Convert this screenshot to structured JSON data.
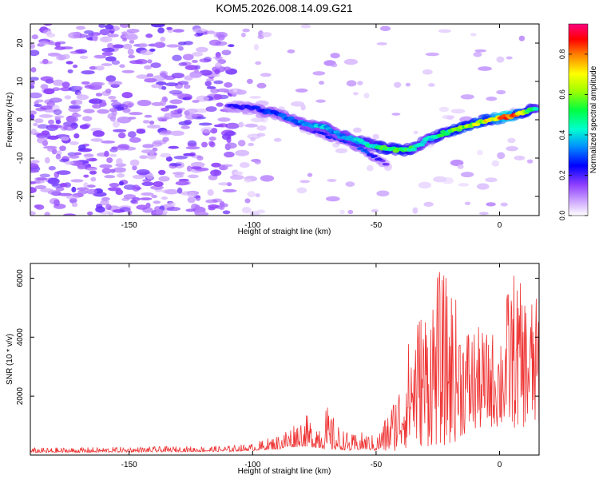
{
  "title": "KOM5.2026.008.14.09.G21",
  "chart_data": [
    {
      "type": "heatmap",
      "title": "KOM5.2026.008.14.09.G21",
      "xlabel": "Height of straight line (km)",
      "ylabel": "Frequency (Hz)",
      "xlim": [
        -190,
        16
      ],
      "ylim": [
        -25,
        25
      ],
      "xticks": [
        -150,
        -100,
        -50,
        0
      ],
      "yticks": [
        -20,
        -10,
        0,
        10,
        20
      ],
      "xtick_labels": [
        "-150",
        "-100",
        "-50",
        "0"
      ],
      "ytick_labels": [
        "-20",
        "-10",
        "0",
        "10",
        "20"
      ],
      "colorbar": {
        "label": "Normalized spectral amplitude",
        "range": [
          0.0,
          0.95
        ],
        "ticks": [
          0.0,
          0.2,
          0.4,
          0.6,
          0.8
        ],
        "tick_labels": [
          "0.0",
          "0.2",
          "0.4",
          "0.6",
          "0.8"
        ],
        "colors": [
          "#e6ccff",
          "#c080ff",
          "#8000ff",
          "#0000ff",
          "#00c0ff",
          "#00ff80",
          "#80ff00",
          "#ffff00",
          "#ff8000",
          "#ff0000",
          "#ff0080"
        ]
      },
      "ridge": {
        "x": [
          -110,
          -100,
          -90,
          -80,
          -70,
          -65,
          -60,
          -55,
          -50,
          -45,
          -40,
          -35,
          -30,
          -25,
          -20,
          -15,
          -10,
          -5,
          0,
          5,
          10,
          15
        ],
        "y": [
          3.5,
          3,
          1.5,
          -1,
          -2,
          -4,
          -5,
          -6,
          -7,
          -7.5,
          -8,
          -7.5,
          -5.5,
          -4,
          -3,
          -2,
          -1,
          0,
          0.5,
          1,
          2,
          3
        ],
        "amplitude": [
          0.2,
          0.25,
          0.3,
          0.35,
          0.4,
          0.35,
          0.4,
          0.45,
          0.5,
          0.55,
          0.6,
          0.5,
          0.4,
          0.5,
          0.55,
          0.6,
          0.65,
          0.7,
          0.8,
          0.85,
          0.6,
          0.5
        ]
      },
      "secondary_ridge": {
        "x": [
          -80,
          -70,
          -60,
          -55,
          -50,
          -45
        ],
        "y": [
          -2,
          -4,
          -6,
          -8,
          -10,
          -12
        ],
        "amplitude": [
          0.2,
          0.25,
          0.3,
          0.3,
          0.25,
          0.15
        ]
      }
    },
    {
      "type": "line",
      "xlabel": "Height of straight line (km)",
      "ylabel": "SNR (10 * v/v)",
      "xlim": [
        -190,
        16
      ],
      "ylim": [
        0,
        6500
      ],
      "xticks": [
        -150,
        -100,
        -50,
        0
      ],
      "yticks": [
        2000,
        4000,
        6000
      ],
      "xtick_labels": [
        "-150",
        "-100",
        "-50",
        "0"
      ],
      "ytick_labels": [
        "2000",
        "4000",
        "6000"
      ],
      "color": "#ee3333",
      "envelope": {
        "x": [
          -190,
          -150,
          -110,
          -100,
          -90,
          -80,
          -75,
          -70,
          -65,
          -60,
          -55,
          -50,
          -45,
          -40,
          -35,
          -30,
          -25,
          -20,
          -15,
          -10,
          -5,
          0,
          5,
          10,
          16
        ],
        "base": [
          80,
          100,
          120,
          150,
          200,
          300,
          250,
          200,
          180,
          150,
          200,
          150,
          300,
          600,
          1000,
          900,
          1100,
          1000,
          2200,
          2600,
          3200,
          3000,
          3000,
          3100,
          3200
        ],
        "peak": [
          250,
          280,
          320,
          400,
          700,
          1400,
          1300,
          1700,
          1000,
          700,
          800,
          650,
          1500,
          2600,
          4700,
          5200,
          6300,
          6000,
          4600,
          4400,
          4200,
          4300,
          6400,
          5600,
          5300
        ]
      }
    }
  ]
}
